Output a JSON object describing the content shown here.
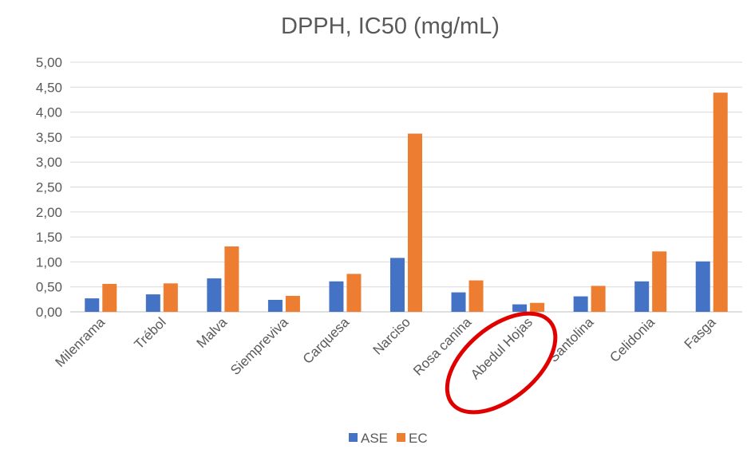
{
  "chart_data": {
    "type": "bar",
    "title": "DPPH, IC50 (mg/mL)",
    "categories": [
      "Milenrama",
      "Trébol",
      "Malva",
      "Siempreviva",
      "Carquesa",
      "Narciso",
      "Rosa canina",
      "Abedul Hojas",
      "Santolina",
      "Celidonia",
      "Fasga"
    ],
    "series": [
      {
        "name": "ASE",
        "color": "#4472c4",
        "values": [
          0.27,
          0.35,
          0.67,
          0.24,
          0.61,
          1.08,
          0.39,
          0.15,
          0.31,
          0.61,
          1.01
        ]
      },
      {
        "name": "EC",
        "color": "#ed7d31",
        "values": [
          0.56,
          0.57,
          1.31,
          0.32,
          0.76,
          3.57,
          0.63,
          0.18,
          0.52,
          1.21,
          4.39
        ]
      }
    ],
    "ylim": [
      0,
      5
    ],
    "ytick_labels": [
      "0,00",
      "0,50",
      "1,00",
      "1,50",
      "2,00",
      "2,50",
      "3,00",
      "3,50",
      "4,00",
      "4,50",
      "5,00"
    ],
    "grid": true,
    "legend_position": "bottom",
    "annotation": {
      "shape": "ellipse",
      "color": "#e00000",
      "target": "Abedul Hojas"
    }
  }
}
